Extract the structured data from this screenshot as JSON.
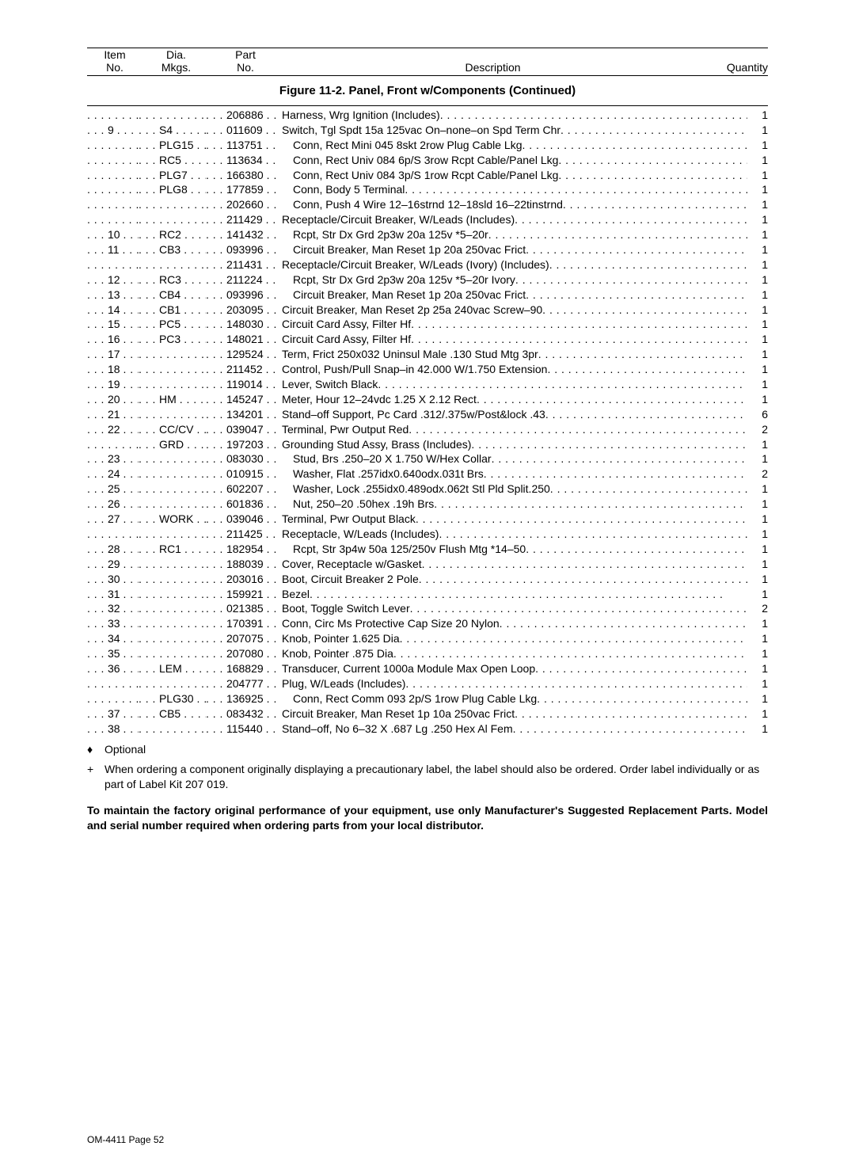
{
  "header": {
    "item1": "Item",
    "item2": "No.",
    "dia1": "Dia.",
    "dia2": "Mkgs.",
    "part1": "Part",
    "part2": "No.",
    "desc": "Description",
    "qty": "Quantity"
  },
  "figure_title": "Figure 11-2. Panel,  Front w/Components (Continued)",
  "rows": [
    {
      "item": "",
      "dia": "",
      "part": "206886",
      "desc": "Harness, Wrg Ignition (Includes)",
      "qty": "1",
      "indent": 0
    },
    {
      "item": "9",
      "dia": "S4",
      "part": "011609",
      "desc": "Switch, Tgl Spdt 15a 125vac On–none–on Spd Term Chr",
      "qty": "1",
      "indent": 0
    },
    {
      "item": "",
      "dia": "PLG15",
      "part": "113751",
      "desc": "Conn, Rect Mini 045 8skt 2row Plug Cable Lkg",
      "qty": "1",
      "indent": 1
    },
    {
      "item": "",
      "dia": "RC5",
      "part": "113634",
      "desc": "Conn, Rect Univ 084 6p/S 3row Rcpt Cable/Panel Lkg",
      "qty": "1",
      "indent": 1
    },
    {
      "item": "",
      "dia": "PLG7",
      "part": "166380",
      "desc": "Conn, Rect Univ 084 3p/S 1row Rcpt Cable/Panel Lkg",
      "qty": "1",
      "indent": 1
    },
    {
      "item": "",
      "dia": "PLG8",
      "part": "177859",
      "desc": "Conn, Body 5 Terminal",
      "qty": "1",
      "indent": 1
    },
    {
      "item": "",
      "dia": "",
      "part": "202660",
      "desc": "Conn, Push 4 Wire 12–16strnd 12–18sld 16–22tinstrnd",
      "qty": "1",
      "indent": 1
    },
    {
      "item": "",
      "dia": "",
      "part": "211429",
      "desc": "Receptacle/Circuit Breaker, W/Leads (Includes)",
      "qty": "1",
      "indent": 0
    },
    {
      "item": "10",
      "dia": "RC2",
      "part": "141432",
      "desc": "Rcpt, Str Dx Grd 2p3w 20a 125v *5–20r",
      "qty": "1",
      "indent": 1
    },
    {
      "item": "11",
      "dia": "CB3",
      "part": "093996",
      "desc": "Circuit Breaker, Man Reset 1p 20a 250vac Frict",
      "qty": "1",
      "indent": 1
    },
    {
      "item": "",
      "dia": "",
      "part": "211431",
      "desc": "Receptacle/Circuit Breaker, W/Leads (Ivory) (Includes)",
      "qty": "1",
      "indent": 0
    },
    {
      "item": "12",
      "dia": "RC3",
      "part": "211224",
      "desc": "Rcpt, Str Dx Grd 2p3w 20a 125v *5–20r Ivory",
      "qty": "1",
      "indent": 1
    },
    {
      "item": "13",
      "dia": "CB4",
      "part": "093996",
      "desc": "Circuit Breaker, Man Reset 1p 20a 250vac Frict",
      "qty": "1",
      "indent": 1
    },
    {
      "item": "14",
      "dia": "CB1",
      "part": "203095",
      "desc": "Circuit Breaker, Man Reset 2p 25a 240vac Screw–90",
      "qty": "1",
      "indent": 0
    },
    {
      "item": "15",
      "dia": "PC5",
      "part": "148030",
      "desc": "Circuit Card Assy, Filter Hf",
      "qty": "1",
      "indent": 0
    },
    {
      "item": "16",
      "dia": "PC3",
      "part": "148021",
      "desc": "Circuit Card Assy, Filter Hf",
      "qty": "1",
      "indent": 0
    },
    {
      "item": "17",
      "dia": "",
      "part": "129524",
      "desc": "Term, Frict 250x032 Uninsul Male .130 Stud Mtg 3pr",
      "qty": "1",
      "indent": 0
    },
    {
      "item": "18",
      "dia": "",
      "part": "211452",
      "desc": "Control, Push/Pull Snap–in 42.000 W/1.750 Extension",
      "qty": "1",
      "indent": 0
    },
    {
      "item": "19",
      "dia": "",
      "part": "119014",
      "desc": "Lever, Switch Black",
      "qty": "1",
      "indent": 0
    },
    {
      "item": "20",
      "dia": "HM",
      "part": "145247",
      "desc": "Meter, Hour 12–24vdc 1.25 X 2.12 Rect",
      "qty": "1",
      "indent": 0
    },
    {
      "item": "21",
      "dia": "",
      "part": "134201",
      "desc": "Stand–off Support, Pc Card .312/.375w/Post&lock .43",
      "qty": "6",
      "indent": 0
    },
    {
      "item": "22",
      "dia": "CC/CV",
      "part": "039047",
      "desc": "Terminal, Pwr Output Red",
      "qty": "2",
      "indent": 0
    },
    {
      "item": "",
      "dia": "GRD",
      "part": "197203",
      "desc": "Grounding Stud Assy, Brass (Includes)",
      "qty": "1",
      "indent": 0
    },
    {
      "item": "23",
      "dia": "",
      "part": "083030",
      "desc": "Stud, Brs .250–20 X 1.750 W/Hex Collar",
      "qty": "1",
      "indent": 1
    },
    {
      "item": "24",
      "dia": "",
      "part": "010915",
      "desc": "Washer, Flat .257idx0.640odx.031t Brs",
      "qty": "2",
      "indent": 1
    },
    {
      "item": "25",
      "dia": "",
      "part": "602207",
      "desc": "Washer, Lock .255idx0.489odx.062t Stl Pld Split.250",
      "qty": "1",
      "indent": 1
    },
    {
      "item": "26",
      "dia": "",
      "part": "601836",
      "desc": "Nut,  250–20 .50hex .19h Brs",
      "qty": "1",
      "indent": 1
    },
    {
      "item": "27",
      "dia": "WORK",
      "part": "039046",
      "desc": "Terminal, Pwr Output Black",
      "qty": "1",
      "indent": 0
    },
    {
      "item": "",
      "dia": "",
      "part": "211425",
      "desc": "Receptacle, W/Leads (Includes)",
      "qty": "1",
      "indent": 0
    },
    {
      "item": "28",
      "dia": "RC1",
      "part": "182954",
      "desc": "Rcpt, Str 3p4w 50a 125/250v Flush Mtg *14–50",
      "qty": "1",
      "indent": 1
    },
    {
      "item": "29",
      "dia": "",
      "part": "188039",
      "desc": "Cover, Receptacle w/Gasket",
      "qty": "1",
      "indent": 0
    },
    {
      "item": "30",
      "dia": "",
      "part": "203016",
      "desc": "Boot, Circuit Breaker 2 Pole",
      "qty": "1",
      "indent": 0
    },
    {
      "item": "31",
      "dia": "",
      "part": "159921",
      "desc": "Bezel",
      "qty": "1",
      "indent": 0
    },
    {
      "item": "32",
      "dia": "",
      "part": "021385",
      "desc": "Boot, Toggle Switch Lever",
      "qty": "2",
      "indent": 0
    },
    {
      "item": "33",
      "dia": "",
      "part": "170391",
      "desc": "Conn, Circ Ms Protective Cap Size 20 Nylon",
      "qty": "1",
      "indent": 0
    },
    {
      "item": "34",
      "dia": "",
      "part": "207075",
      "desc": "Knob, Pointer 1.625 Dia",
      "qty": "1",
      "indent": 0
    },
    {
      "item": "35",
      "dia": "",
      "part": "207080",
      "desc": "Knob, Pointer .875 Dia",
      "qty": "1",
      "indent": 0
    },
    {
      "item": "36",
      "dia": "LEM",
      "part": "168829",
      "desc": "Transducer, Current 1000a Module Max Open Loop",
      "qty": "1",
      "indent": 0
    },
    {
      "item": "",
      "dia": "",
      "part": "204777",
      "desc": "Plug, W/Leads (Includes)",
      "qty": "1",
      "indent": 0
    },
    {
      "item": "",
      "dia": "PLG30",
      "part": "136925",
      "desc": "Conn, Rect Comm 093 2p/S 1row Plug Cable Lkg",
      "qty": "1",
      "indent": 1
    },
    {
      "item": "37",
      "dia": "CB5",
      "part": "083432",
      "desc": "Circuit Breaker, Man Reset 1p 10a 250vac Frict",
      "qty": "1",
      "indent": 0
    },
    {
      "item": "38",
      "dia": "",
      "part": "115440",
      "desc": "Stand–off, No 6–32 X .687 Lg .250 Hex Al Fem",
      "qty": "1",
      "indent": 0
    }
  ],
  "optional_sym": "♦",
  "optional_label": "Optional",
  "plus_sym": "+",
  "plus_note": "When ordering a component originally displaying a precautionary label,   the label should also be ordered. Order label individually or as part of Label Kit 207 019.",
  "bold_note": "To maintain the factory original performance of your equipment,   use only Manufacturer's Suggested Replacement Parts. Model and serial number required when ordering parts from your local distributor.",
  "footer": "OM-4411 Page 52"
}
